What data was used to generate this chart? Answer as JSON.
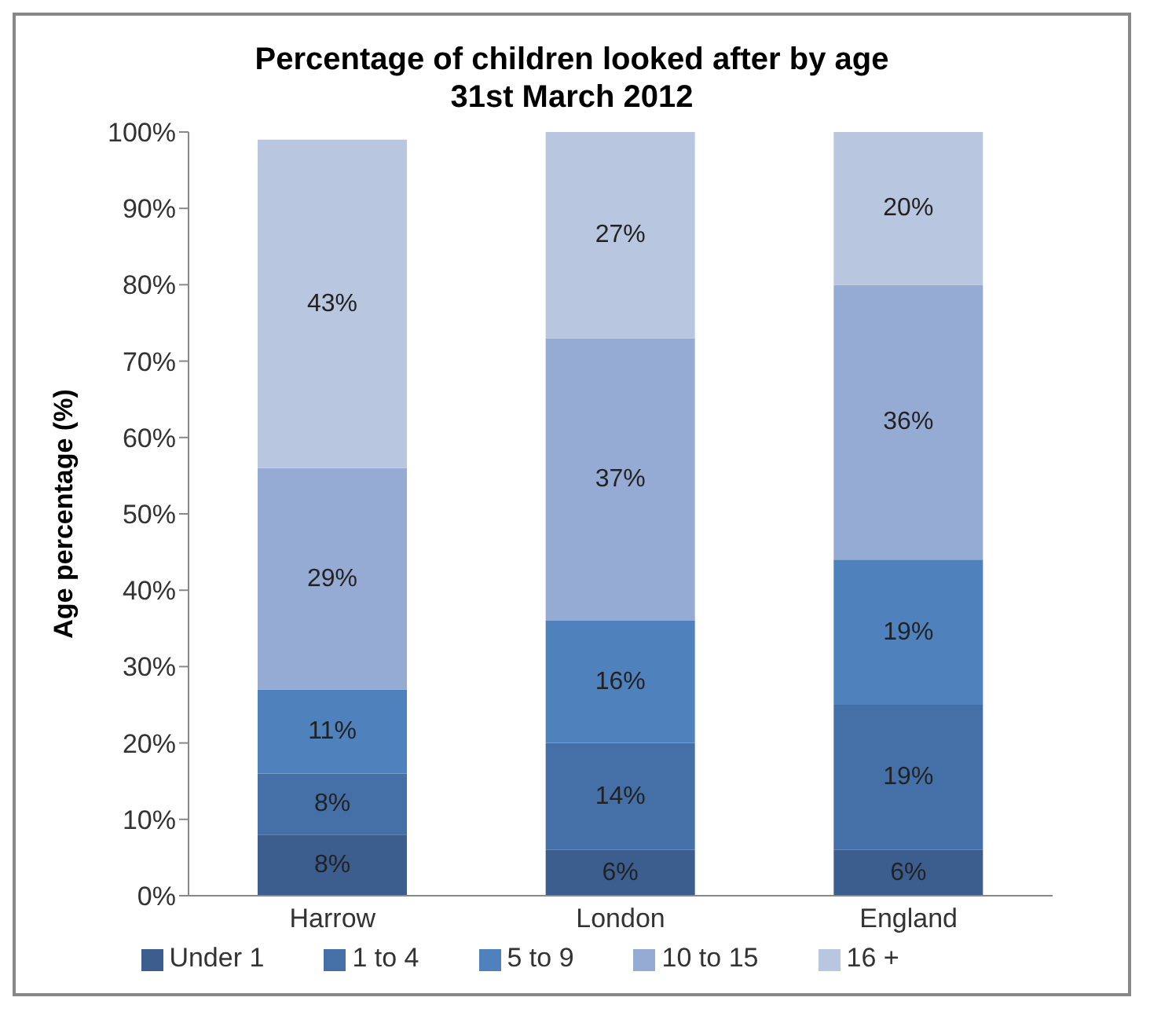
{
  "chart_data": {
    "type": "bar",
    "title": "Percentage of children looked after by age\n31st March 2012",
    "ylabel": "Age percentage (%)",
    "categories": [
      "Harrow",
      "London",
      "England"
    ],
    "stacked": true,
    "legend": "bottom",
    "grid": false,
    "ylim": [
      0,
      100
    ],
    "yticks": [
      {
        "value": 0,
        "label": "0%"
      },
      {
        "value": 10,
        "label": "10%"
      },
      {
        "value": 20,
        "label": "20%"
      },
      {
        "value": 30,
        "label": "30%"
      },
      {
        "value": 40,
        "label": "40%"
      },
      {
        "value": 50,
        "label": "50%"
      },
      {
        "value": 60,
        "label": "60%"
      },
      {
        "value": 70,
        "label": "70%"
      },
      {
        "value": 80,
        "label": "80%"
      },
      {
        "value": 90,
        "label": "90%"
      },
      {
        "value": 100,
        "label": "100%"
      }
    ],
    "series": [
      {
        "name": "Under 1",
        "color": "#3b5e8f",
        "values": [
          8,
          6,
          6
        ],
        "value_labels": [
          "8%",
          "6%",
          "6%"
        ]
      },
      {
        "name": "1 to 4",
        "color": "#4570a7",
        "values": [
          8,
          14,
          19
        ],
        "value_labels": [
          "8%",
          "14%",
          "19%"
        ]
      },
      {
        "name": "5 to 9",
        "color": "#4f81bd",
        "values": [
          11,
          16,
          19
        ],
        "value_labels": [
          "11%",
          "16%",
          "19%"
        ]
      },
      {
        "name": "10 to 15",
        "color": "#95abd4",
        "values": [
          29,
          37,
          36
        ],
        "value_labels": [
          "29%",
          "37%",
          "36%"
        ]
      },
      {
        "name": "16 +",
        "color": "#b9c6e0",
        "values": [
          43,
          27,
          20
        ],
        "value_labels": [
          "43%",
          "27%",
          "20%"
        ]
      }
    ]
  }
}
